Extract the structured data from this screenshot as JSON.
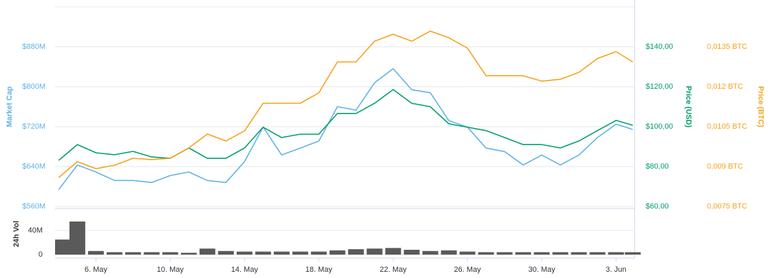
{
  "chart_data": {
    "type": "line",
    "ylabel": "Market Cap",
    "y2label": "Price (USD)",
    "y3label": "Price (BTC)",
    "x": [
      4,
      5,
      6,
      7,
      8,
      9,
      10,
      11,
      12,
      13,
      14,
      15,
      16,
      17,
      18,
      19,
      20,
      21,
      22,
      23,
      24,
      25,
      26,
      27,
      28,
      29,
      30,
      31,
      32,
      33,
      34,
      34.9
    ],
    "xlim": [
      3.8,
      35
    ],
    "xticks": [
      {
        "value": 6,
        "label": "6. May"
      },
      {
        "value": 10,
        "label": "10. May"
      },
      {
        "value": 14,
        "label": "14. May"
      },
      {
        "value": 18,
        "label": "18. May"
      },
      {
        "value": 22,
        "label": "22. May"
      },
      {
        "value": 26,
        "label": "26. May"
      },
      {
        "value": 30,
        "label": "30. May"
      },
      {
        "value": 34,
        "label": "3. Jun"
      }
    ],
    "ylim": [
      560000000,
      960000000
    ],
    "yticks": [
      {
        "value": 560000000,
        "label": "$560M"
      },
      {
        "value": 640000000,
        "label": "$640M"
      },
      {
        "value": 720000000,
        "label": "$720M"
      },
      {
        "value": 800000000,
        "label": "$800M"
      },
      {
        "value": 880000000,
        "label": "$880M"
      }
    ],
    "y2lim": [
      60,
      160
    ],
    "y2ticks": [
      {
        "value": 60,
        "label": "$60,00"
      },
      {
        "value": 80,
        "label": "$80,00"
      },
      {
        "value": 100,
        "label": "$100,00"
      },
      {
        "value": 120,
        "label": "$120,00"
      },
      {
        "value": 140,
        "label": "$140,00"
      }
    ],
    "y3lim": [
      0.0075,
      0.015
    ],
    "y3ticks": [
      {
        "value": 0.0075,
        "label": "0,0075 BTC"
      },
      {
        "value": 0.009,
        "label": "0,009 BTC"
      },
      {
        "value": 0.0105,
        "label": "0,0105 BTC"
      },
      {
        "value": 0.012,
        "label": "0,012 BTC"
      },
      {
        "value": 0.0135,
        "label": "0,0135 BTC"
      }
    ],
    "series": [
      {
        "name": "Market Cap",
        "axis": "y",
        "color": "#5fb3e6",
        "values": [
          594000000,
          643000000,
          629000000,
          612000000,
          612000000,
          608000000,
          622000000,
          629000000,
          612000000,
          608000000,
          650000000,
          719000000,
          663000000,
          677000000,
          691000000,
          760000000,
          753000000,
          808000000,
          836000000,
          794000000,
          788000000,
          732000000,
          719000000,
          677000000,
          670000000,
          643000000,
          663000000,
          643000000,
          663000000,
          698000000,
          725000000,
          714000000
        ]
      },
      {
        "name": "Price (USD)",
        "axis": "y2",
        "color": "#009e6a",
        "values": [
          83.1,
          91.0,
          86.9,
          85.9,
          87.6,
          84.8,
          84.1,
          89.3,
          84.1,
          84.1,
          89.3,
          99.7,
          94.5,
          96.2,
          96.2,
          106.6,
          106.6,
          111.7,
          118.6,
          111.7,
          110.0,
          101.4,
          99.7,
          98.0,
          94.5,
          91.0,
          91.0,
          89.3,
          92.8,
          98.0,
          103.1,
          100.7
        ]
      },
      {
        "name": "Price (BTC)",
        "axis": "y3",
        "color": "#f5a21b",
        "values": [
          0.00859,
          0.00918,
          0.00892,
          0.00905,
          0.00931,
          0.00926,
          0.00931,
          0.0097,
          0.01022,
          0.00996,
          0.01034,
          0.01138,
          0.01138,
          0.01138,
          0.01177,
          0.01293,
          0.01293,
          0.01371,
          0.01397,
          0.01371,
          0.01409,
          0.01384,
          0.01345,
          0.01241,
          0.01241,
          0.01241,
          0.01221,
          0.01228,
          0.01254,
          0.01306,
          0.01332,
          0.01293
        ]
      }
    ],
    "volume": {
      "label": "24h Vol",
      "color": "#5a5a5a",
      "ylim": [
        0,
        80000000
      ],
      "yticks": [
        0,
        {
          "value": 40000000,
          "label": "40M"
        }
      ],
      "values": [
        25000000,
        55000000,
        6000000,
        4000000,
        4000000,
        4000000,
        4000000,
        3000000,
        10000000,
        6000000,
        5000000,
        5000000,
        5000000,
        5000000,
        5000000,
        7000000,
        9000000,
        10000000,
        11000000,
        8000000,
        6000000,
        7000000,
        5000000,
        4000000,
        4000000,
        4000000,
        4000000,
        4000000,
        4000000,
        4000000,
        4000000,
        4000000
      ]
    }
  }
}
